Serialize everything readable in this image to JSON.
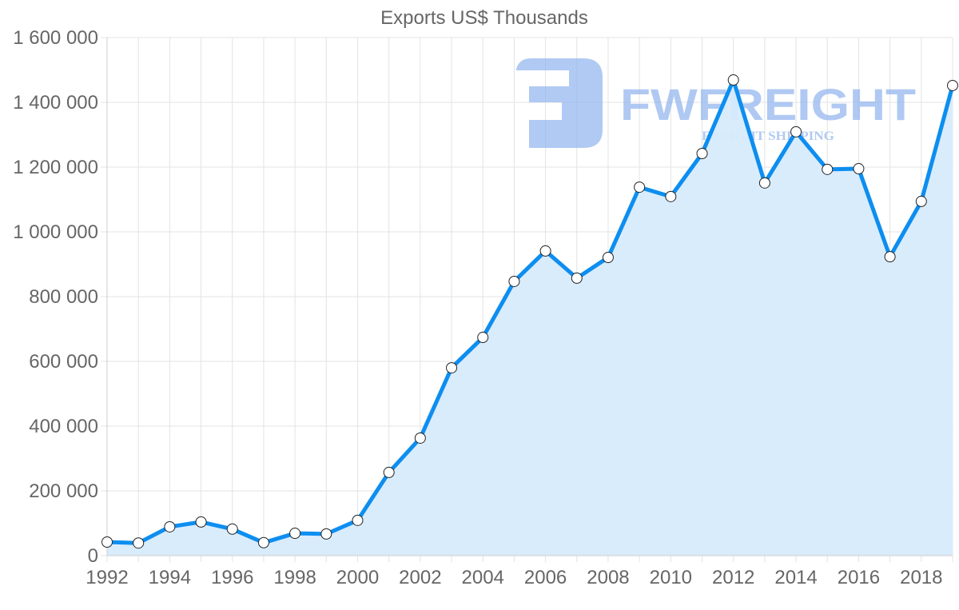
{
  "chart_data": {
    "type": "line",
    "title": "Exports US$ Thousands",
    "xlabel": "",
    "ylabel": "",
    "x": [
      1992,
      1993,
      1994,
      1995,
      1996,
      1997,
      1998,
      1999,
      2000,
      2001,
      2002,
      2003,
      2004,
      2005,
      2006,
      2007,
      2008,
      2009,
      2010,
      2011,
      2012,
      2013,
      2014,
      2015,
      2016,
      2017,
      2018,
      2019
    ],
    "x_tick_labels": [
      "1992",
      "1994",
      "1996",
      "1998",
      "2000",
      "2002",
      "2004",
      "2006",
      "2008",
      "2010",
      "2012",
      "2014",
      "2016",
      "2018"
    ],
    "series": [
      {
        "name": "Exports US$ Thousands",
        "values": [
          42000,
          39000,
          89000,
          104000,
          82000,
          40000,
          69000,
          67000,
          109000,
          257000,
          363000,
          580000,
          674000,
          847000,
          941000,
          857000,
          921000,
          1138000,
          1109000,
          1242000,
          1469000,
          1151000,
          1309000,
          1193000,
          1195000,
          923000,
          1094000,
          1452000
        ],
        "line_color": "#0d8ef0",
        "fill_color": "#d7ebfc",
        "marker_fill": "#ffffff",
        "marker_stroke": "#222222"
      }
    ],
    "ylim": [
      0,
      1600000
    ],
    "y_ticks": [
      0,
      200000,
      400000,
      600000,
      800000,
      1000000,
      1200000,
      1400000,
      1600000
    ],
    "y_tick_labels": [
      "0",
      "200 000",
      "400 000",
      "600 000",
      "800 000",
      "1 000 000",
      "1 200 000",
      "1 400 000",
      "1 600 000"
    ],
    "grid": true,
    "legend": "none",
    "area_filled": true
  },
  "watermark": {
    "brand": "FWFREIGHT",
    "tagline": "FREIGHT SHIPPING",
    "color": "#8fb3ee",
    "icon": "fwfreight-logo-icon"
  }
}
